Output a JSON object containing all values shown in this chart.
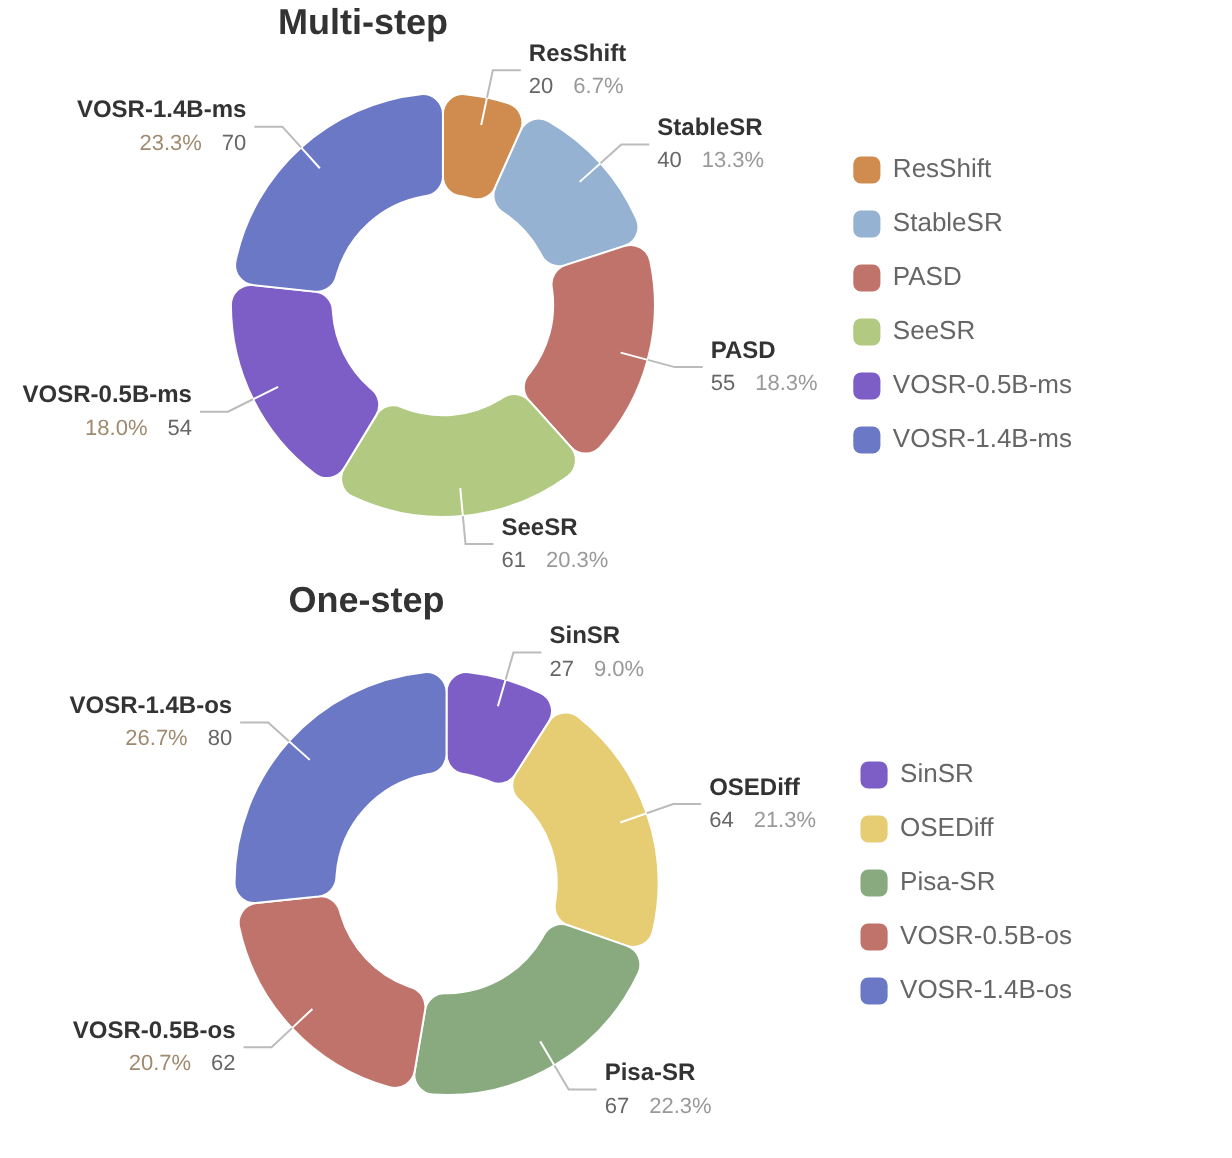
{
  "chart_data": [
    {
      "type": "donut",
      "title": "Multi-step",
      "categories": [
        "ResShift",
        "StableSR",
        "PASD",
        "SeeSR",
        "VOSR-0.5B-ms",
        "VOSR-1.4B-ms"
      ],
      "values": [
        20,
        40,
        55,
        61,
        54,
        70
      ],
      "colors": [
        "#d08c4e",
        "#95b2d2",
        "#c0736b",
        "#b2c981",
        "#7d5ec6",
        "#6b78c6"
      ],
      "data_labels": true,
      "legend": "right",
      "annotations": [
        {
          "text": "6.7%",
          "x": "ResShift"
        },
        {
          "text": "13.3%",
          "x": "StableSR"
        },
        {
          "text": "18.3%",
          "x": "PASD"
        },
        {
          "text": "20.3%",
          "x": "SeeSR"
        },
        {
          "text": "18.0%",
          "x": "VOSR-0.5B-ms"
        },
        {
          "text": "23.3%",
          "x": "VOSR-1.4B-ms"
        }
      ]
    },
    {
      "type": "donut",
      "title": "One-step",
      "categories": [
        "SinSR",
        "OSEDiff",
        "Pisa-SR",
        "VOSR-0.5B-os",
        "VOSR-1.4B-os"
      ],
      "values": [
        27,
        64,
        67,
        62,
        80
      ],
      "colors": [
        "#7d5ec6",
        "#e6cc72",
        "#88aa7e",
        "#c0736b",
        "#6b78c6"
      ],
      "data_labels": true,
      "legend": "right",
      "annotations": [
        {
          "text": "9.0%",
          "x": "SinSR"
        },
        {
          "text": "21.3%",
          "x": "OSEDiff"
        },
        {
          "text": "22.3%",
          "x": "Pisa-SR"
        },
        {
          "text": "20.7%",
          "x": "VOSR-0.5B-os"
        },
        {
          "text": "26.7%",
          "x": "VOSR-1.4B-os"
        }
      ]
    }
  ]
}
